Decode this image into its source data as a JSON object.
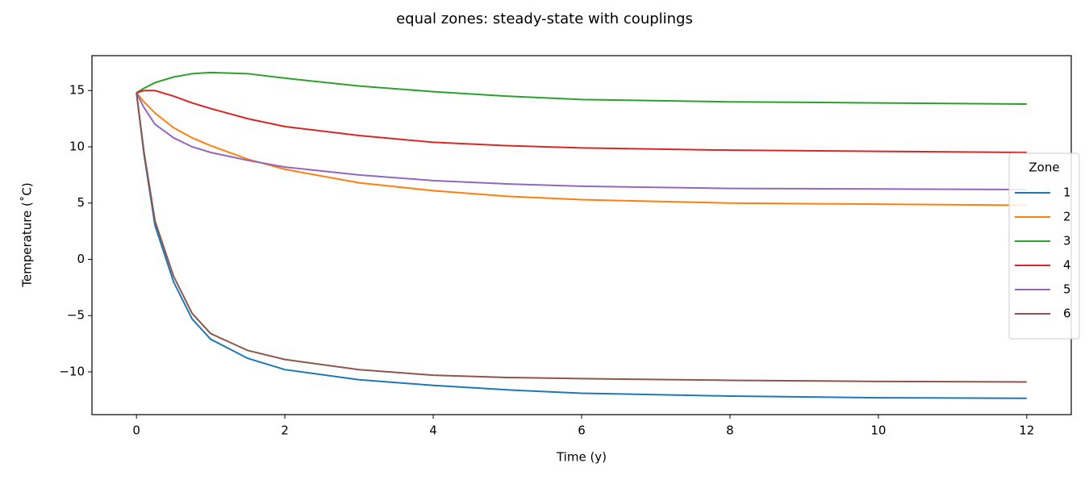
{
  "chart_data": {
    "type": "line",
    "title": "equal zones: steady-state with couplings",
    "x_label": "Time (y)",
    "y_label": "Temperature (˚C)",
    "legend_title": "Zone",
    "legend_position": "right",
    "grid": false,
    "x": [
      0,
      0.1,
      0.25,
      0.5,
      0.75,
      1,
      1.5,
      2,
      3,
      4,
      5,
      6,
      8,
      10,
      12
    ],
    "series": [
      {
        "name": "1",
        "color": "#1f77b4",
        "values": [
          14.8,
          9.4,
          3.0,
          -2.0,
          -5.3,
          -7.1,
          -8.8,
          -9.8,
          -10.7,
          -11.2,
          -11.6,
          -11.9,
          -12.15,
          -12.3,
          -12.35
        ]
      },
      {
        "name": "2",
        "color": "#ff7f0e",
        "values": [
          14.8,
          14.0,
          13.0,
          11.7,
          10.8,
          10.1,
          8.9,
          8.0,
          6.8,
          6.1,
          5.6,
          5.3,
          5.0,
          4.9,
          4.8
        ]
      },
      {
        "name": "3",
        "color": "#2ca02c",
        "values": [
          14.8,
          15.2,
          15.7,
          16.2,
          16.5,
          16.6,
          16.5,
          16.1,
          15.4,
          14.9,
          14.5,
          14.2,
          14.0,
          13.9,
          13.8
        ]
      },
      {
        "name": "4",
        "color": "#d62728",
        "values": [
          14.8,
          15.0,
          15.0,
          14.5,
          13.9,
          13.4,
          12.5,
          11.8,
          11.0,
          10.4,
          10.1,
          9.9,
          9.7,
          9.6,
          9.5
        ]
      },
      {
        "name": "5",
        "color": "#9467bd",
        "values": [
          14.8,
          13.5,
          12.0,
          10.8,
          10.0,
          9.5,
          8.8,
          8.2,
          7.5,
          7.0,
          6.7,
          6.5,
          6.3,
          6.25,
          6.2
        ]
      },
      {
        "name": "6",
        "color": "#8c564b",
        "values": [
          14.8,
          9.6,
          3.4,
          -1.5,
          -4.8,
          -6.6,
          -8.1,
          -8.9,
          -9.8,
          -10.3,
          -10.5,
          -10.6,
          -10.75,
          -10.85,
          -10.9
        ]
      }
    ],
    "xlim": [
      -0.6,
      12.6
    ],
    "xticks": [
      0,
      2,
      4,
      6,
      8,
      10,
      12
    ],
    "ylim": [
      -13.8,
      18.1
    ],
    "yticks": [
      {
        "value": -10,
        "label": "−10"
      },
      {
        "value": -5,
        "label": "−5"
      },
      0,
      5,
      10,
      15
    ]
  }
}
